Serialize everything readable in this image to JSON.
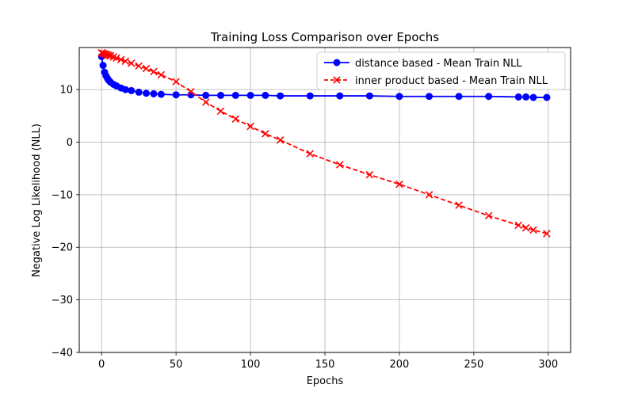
{
  "chart_data": {
    "type": "line",
    "title": "Training Loss Comparison over Epochs",
    "xlabel": "Epochs",
    "ylabel": "Negative Log Likelihood (NLL)",
    "xlim": [
      -15,
      315
    ],
    "ylim": [
      -40,
      18
    ],
    "xticks": [
      0,
      50,
      100,
      150,
      200,
      250,
      300
    ],
    "yticks": [
      -40,
      -30,
      -20,
      -10,
      0,
      10
    ],
    "ytick_labels": [
      "−40",
      "−30",
      "−20",
      "−10",
      "0",
      "10"
    ],
    "grid": true,
    "legend_position": "upper right",
    "x": [
      0,
      1,
      2,
      3,
      4,
      5,
      6,
      8,
      10,
      13,
      16,
      20,
      25,
      30,
      35,
      40,
      50,
      60,
      70,
      80,
      90,
      100,
      110,
      120,
      140,
      160,
      180,
      200,
      220,
      240,
      260,
      280,
      285,
      290,
      299
    ],
    "series": [
      {
        "name": "distance based - Mean Train NLL",
        "color": "#0000ff",
        "marker": "circle",
        "line_style": "solid",
        "values": [
          16.3,
          14.6,
          13.3,
          12.6,
          12.1,
          11.7,
          11.4,
          11.0,
          10.7,
          10.3,
          10.0,
          9.8,
          9.5,
          9.3,
          9.2,
          9.1,
          9.0,
          9.0,
          8.9,
          8.9,
          8.9,
          8.9,
          8.9,
          8.8,
          8.8,
          8.8,
          8.8,
          8.7,
          8.7,
          8.7,
          8.7,
          8.6,
          8.6,
          8.5,
          8.5
        ]
      },
      {
        "name": "inner product based - Mean Train NLL",
        "color": "#ff0000",
        "marker": "x",
        "line_style": "dashed",
        "values": [
          17.0,
          16.9,
          16.8,
          16.7,
          16.6,
          16.5,
          16.4,
          16.2,
          16.0,
          15.7,
          15.4,
          15.0,
          14.5,
          14.0,
          13.4,
          12.8,
          11.5,
          9.6,
          7.6,
          5.9,
          4.4,
          3.0,
          1.6,
          0.4,
          -2.2,
          -4.3,
          -6.2,
          -8.0,
          -10.0,
          -12.0,
          -14.0,
          -15.8,
          -16.3,
          -16.7,
          -17.4
        ]
      }
    ]
  }
}
